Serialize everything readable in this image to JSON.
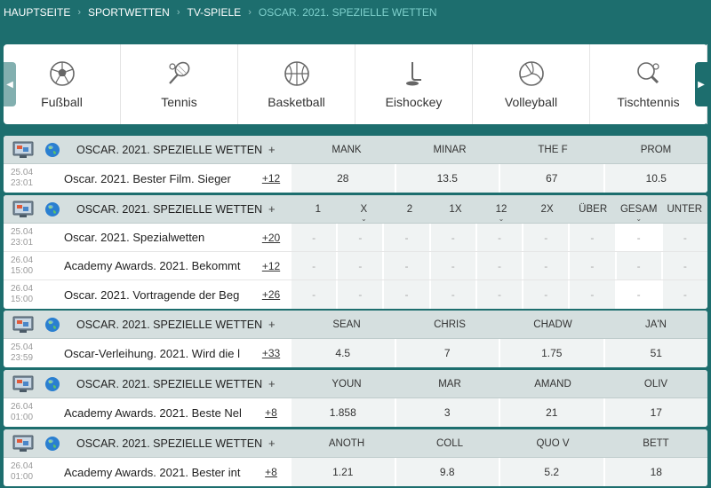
{
  "breadcrumb": [
    "HAUPTSEITE",
    "SPORTWETTEN",
    "TV-SPIELE",
    "OSCAR. 2021. SPEZIELLE WETTEN"
  ],
  "sports": [
    {
      "label": "Fußball",
      "icon": "soccer-ball-icon"
    },
    {
      "label": "Tennis",
      "icon": "tennis-racket-icon"
    },
    {
      "label": "Basketball",
      "icon": "basketball-icon"
    },
    {
      "label": "Eishockey",
      "icon": "ice-hockey-icon"
    },
    {
      "label": "Volleyball",
      "icon": "volleyball-icon"
    },
    {
      "label": "Tischtennis",
      "icon": "table-tennis-icon"
    }
  ],
  "blocks": [
    {
      "title": "OSCAR. 2021. SPEZIELLE WETTEN",
      "plus": "+",
      "columns": [
        "MANK",
        "MINAR",
        "THE F",
        "PROM"
      ],
      "rows": [
        {
          "date": "25.04",
          "time": "23:01",
          "name": "Oscar. 2021. Bester Film. Sieger",
          "more": "+12",
          "odds": [
            "28",
            "13.5",
            "67",
            "10.5"
          ]
        }
      ]
    },
    {
      "title": "OSCAR. 2021. SPEZIELLE WETTEN",
      "plus": "+",
      "columns": [
        "1",
        "X",
        "2",
        "1X",
        "12",
        "2X",
        "ÜBER",
        "GESAM",
        "UNTER"
      ],
      "rows": [
        {
          "date": "25.04",
          "time": "23:01",
          "name": "Oscar. 2021. Spezialwetten",
          "more": "+20",
          "odds": [
            "-",
            "-",
            "-",
            "-",
            "-",
            "-",
            "-",
            "-",
            "-"
          ]
        },
        {
          "date": "26.04",
          "time": "15:00",
          "name": "Academy Awards. 2021. Bekommt",
          "more": "+12",
          "odds": [
            "-",
            "-",
            "-",
            "-",
            "-",
            "-",
            "-",
            "-",
            "-"
          ]
        },
        {
          "date": "26.04",
          "time": "15:00",
          "name": "Oscar. 2021. Vortragende der Beg",
          "more": "+26",
          "odds": [
            "-",
            "-",
            "-",
            "-",
            "-",
            "-",
            "-",
            "-",
            "-"
          ]
        }
      ]
    },
    {
      "title": "OSCAR. 2021. SPEZIELLE WETTEN",
      "plus": "+",
      "columns": [
        "SEAN",
        "CHRIS",
        "CHADW",
        "JA'N"
      ],
      "rows": [
        {
          "date": "25.04",
          "time": "23:59",
          "name": "Oscar-Verleihung. 2021. Wird die l",
          "more": "+33",
          "odds": [
            "4.5",
            "7",
            "1.75",
            "51"
          ]
        }
      ]
    },
    {
      "title": "OSCAR. 2021. SPEZIELLE WETTEN",
      "plus": "+",
      "columns": [
        "YOUN",
        "MAR",
        "AMAND",
        "OLIV"
      ],
      "rows": [
        {
          "date": "26.04",
          "time": "01:00",
          "name": "Academy Awards. 2021. Beste Nel",
          "more": "+8",
          "odds": [
            "1.858",
            "3",
            "21",
            "17"
          ]
        }
      ]
    },
    {
      "title": "OSCAR. 2021. SPEZIELLE WETTEN",
      "plus": "+",
      "columns": [
        "ANOTH",
        "COLL",
        "QUO V",
        "BETT"
      ],
      "rows": [
        {
          "date": "26.04",
          "time": "01:00",
          "name": "Academy Awards. 2021. Bester int",
          "more": "+8",
          "odds": [
            "1.21",
            "9.8",
            "5.2",
            "18"
          ]
        }
      ]
    }
  ]
}
